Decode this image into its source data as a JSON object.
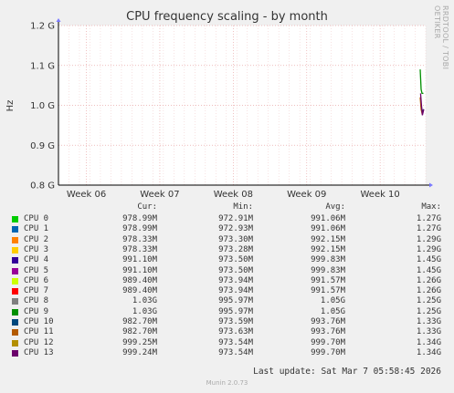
{
  "chart_data": {
    "type": "line",
    "title": "CPU frequency scaling - by month",
    "ylabel": "Hz",
    "ylim": [
      0.8,
      1.2
    ],
    "yticks": [
      "0.8 G",
      "0.9 G",
      "1.0 G",
      "1.1 G",
      "1.2 G"
    ],
    "x_categories": [
      "Week 06",
      "Week 07",
      "Week 08",
      "Week 09",
      "Week 10"
    ],
    "grid": true,
    "series_headers": [
      "Cur:",
      "Min:",
      "Avg:",
      "Max:"
    ],
    "series": [
      {
        "name": "CPU 0",
        "color": "#00cc00",
        "cur": "978.99M",
        "min": "972.91M",
        "avg": "991.06M",
        "max": "1.27G"
      },
      {
        "name": "CPU 1",
        "color": "#0066b3",
        "cur": "978.99M",
        "min": "972.93M",
        "avg": "991.06M",
        "max": "1.27G"
      },
      {
        "name": "CPU 2",
        "color": "#ff8000",
        "cur": "978.33M",
        "min": "973.30M",
        "avg": "992.15M",
        "max": "1.29G"
      },
      {
        "name": "CPU 3",
        "color": "#ffcc00",
        "cur": "978.33M",
        "min": "973.28M",
        "avg": "992.15M",
        "max": "1.29G"
      },
      {
        "name": "CPU 4",
        "color": "#330099",
        "cur": "991.10M",
        "min": "973.50M",
        "avg": "999.83M",
        "max": "1.45G"
      },
      {
        "name": "CPU 5",
        "color": "#990099",
        "cur": "991.10M",
        "min": "973.50M",
        "avg": "999.83M",
        "max": "1.45G"
      },
      {
        "name": "CPU 6",
        "color": "#ccff00",
        "cur": "989.40M",
        "min": "973.94M",
        "avg": "991.57M",
        "max": "1.26G"
      },
      {
        "name": "CPU 7",
        "color": "#ff0000",
        "cur": "989.40M",
        "min": "973.94M",
        "avg": "991.57M",
        "max": "1.26G"
      },
      {
        "name": "CPU 8",
        "color": "#808080",
        "cur": "1.03G",
        "min": "995.97M",
        "avg": "1.05G",
        "max": "1.25G"
      },
      {
        "name": "CPU 9",
        "color": "#008f00",
        "cur": "1.03G",
        "min": "995.97M",
        "avg": "1.05G",
        "max": "1.25G"
      },
      {
        "name": "CPU 10",
        "color": "#00487d",
        "cur": "982.70M",
        "min": "973.59M",
        "avg": "993.76M",
        "max": "1.33G"
      },
      {
        "name": "CPU 11",
        "color": "#b35a00",
        "cur": "982.70M",
        "min": "973.63M",
        "avg": "993.76M",
        "max": "1.33G"
      },
      {
        "name": "CPU 12",
        "color": "#b38f00",
        "cur": "999.25M",
        "min": "973.54M",
        "avg": "999.70M",
        "max": "1.34G"
      },
      {
        "name": "CPU 13",
        "color": "#6b006b",
        "cur": "999.24M",
        "min": "973.54M",
        "avg": "999.70M",
        "max": "1.34G"
      }
    ],
    "plotted_segments": [
      {
        "color": "#008f00",
        "values": [
          1.09,
          1.04,
          1.03,
          1.03
        ]
      },
      {
        "color": "#00487d",
        "values": [
          1.0,
          0.995,
          0.985,
          0.99
        ]
      },
      {
        "color": "#b35a00",
        "values": [
          1.02,
          0.99,
          0.98,
          0.985
        ]
      },
      {
        "color": "#6b006b",
        "values": [
          1.03,
          1.0,
          0.975,
          0.99
        ]
      }
    ]
  },
  "side_label": "RRDTOOL / TOBI OETIKER",
  "last_update": "Last update: Sat Mar  7 05:58:45 2026",
  "footer": "Munin 2.0.73"
}
